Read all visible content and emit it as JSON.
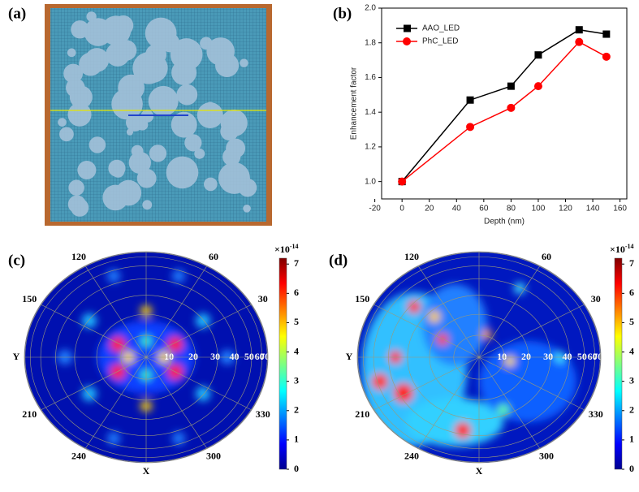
{
  "chart_data": [
    {
      "type": "image",
      "panel_label": "(a)"
    },
    {
      "type": "line",
      "panel_label": "(b)",
      "x_label": "Depth (nm)",
      "y_label": "Enhancement factor",
      "xlim": [
        -15,
        165
      ],
      "xticks": [
        -20,
        0,
        20,
        40,
        60,
        80,
        100,
        120,
        140,
        160
      ],
      "ylim": [
        0.9,
        2.0
      ],
      "yticks": [
        {
          "value": 1.0,
          "label": "1.0"
        },
        {
          "value": 1.2,
          "label": "1.2"
        },
        {
          "value": 1.4,
          "label": "1.4"
        },
        {
          "value": 1.6,
          "label": "1.6"
        },
        {
          "value": 1.8,
          "label": "1.8"
        },
        {
          "value": 2.0,
          "label": "2.0"
        }
      ],
      "legend": "upper left",
      "series": [
        {
          "name": "AAO_LED",
          "color": "#000000",
          "marker": "square",
          "x": [
            0,
            50,
            80,
            100,
            130,
            150
          ],
          "values": [
            1.0,
            1.47,
            1.55,
            1.73,
            1.875,
            1.85
          ]
        },
        {
          "name": "PhC_LED",
          "color": "#ff0000",
          "marker": "circle",
          "x": [
            0,
            50,
            80,
            100,
            130,
            150
          ],
          "values": [
            1.0,
            1.315,
            1.425,
            1.55,
            1.805,
            1.72
          ]
        }
      ]
    },
    {
      "type": "polar-heatmap",
      "panel_label": "(c)",
      "x_label": "X",
      "y_label": "Y",
      "angle_ticks": [
        30,
        60,
        120,
        150,
        210,
        240,
        300,
        330
      ],
      "rlim": [
        0,
        75
      ],
      "radial_ticks": [
        10,
        20,
        30,
        40,
        50,
        60,
        70
      ],
      "clim": [
        0,
        7.2
      ],
      "colorbar_ticks": [
        0,
        1,
        2,
        3,
        4,
        5,
        6,
        7
      ],
      "colorbar_scale": "×10",
      "colorbar_exponent": "-14"
    },
    {
      "type": "polar-heatmap",
      "panel_label": "(d)",
      "x_label": "X",
      "y_label": "Y",
      "angle_ticks": [
        30,
        60,
        120,
        150,
        210,
        240,
        300,
        330
      ],
      "rlim": [
        0,
        75
      ],
      "radial_ticks": [
        10,
        20,
        30,
        40,
        50,
        60,
        70
      ],
      "clim": [
        0,
        7.2
      ],
      "colorbar_ticks": [
        0,
        1,
        2,
        3,
        4,
        5,
        6,
        7
      ],
      "colorbar_scale": "×10",
      "colorbar_exponent": "-14"
    }
  ]
}
